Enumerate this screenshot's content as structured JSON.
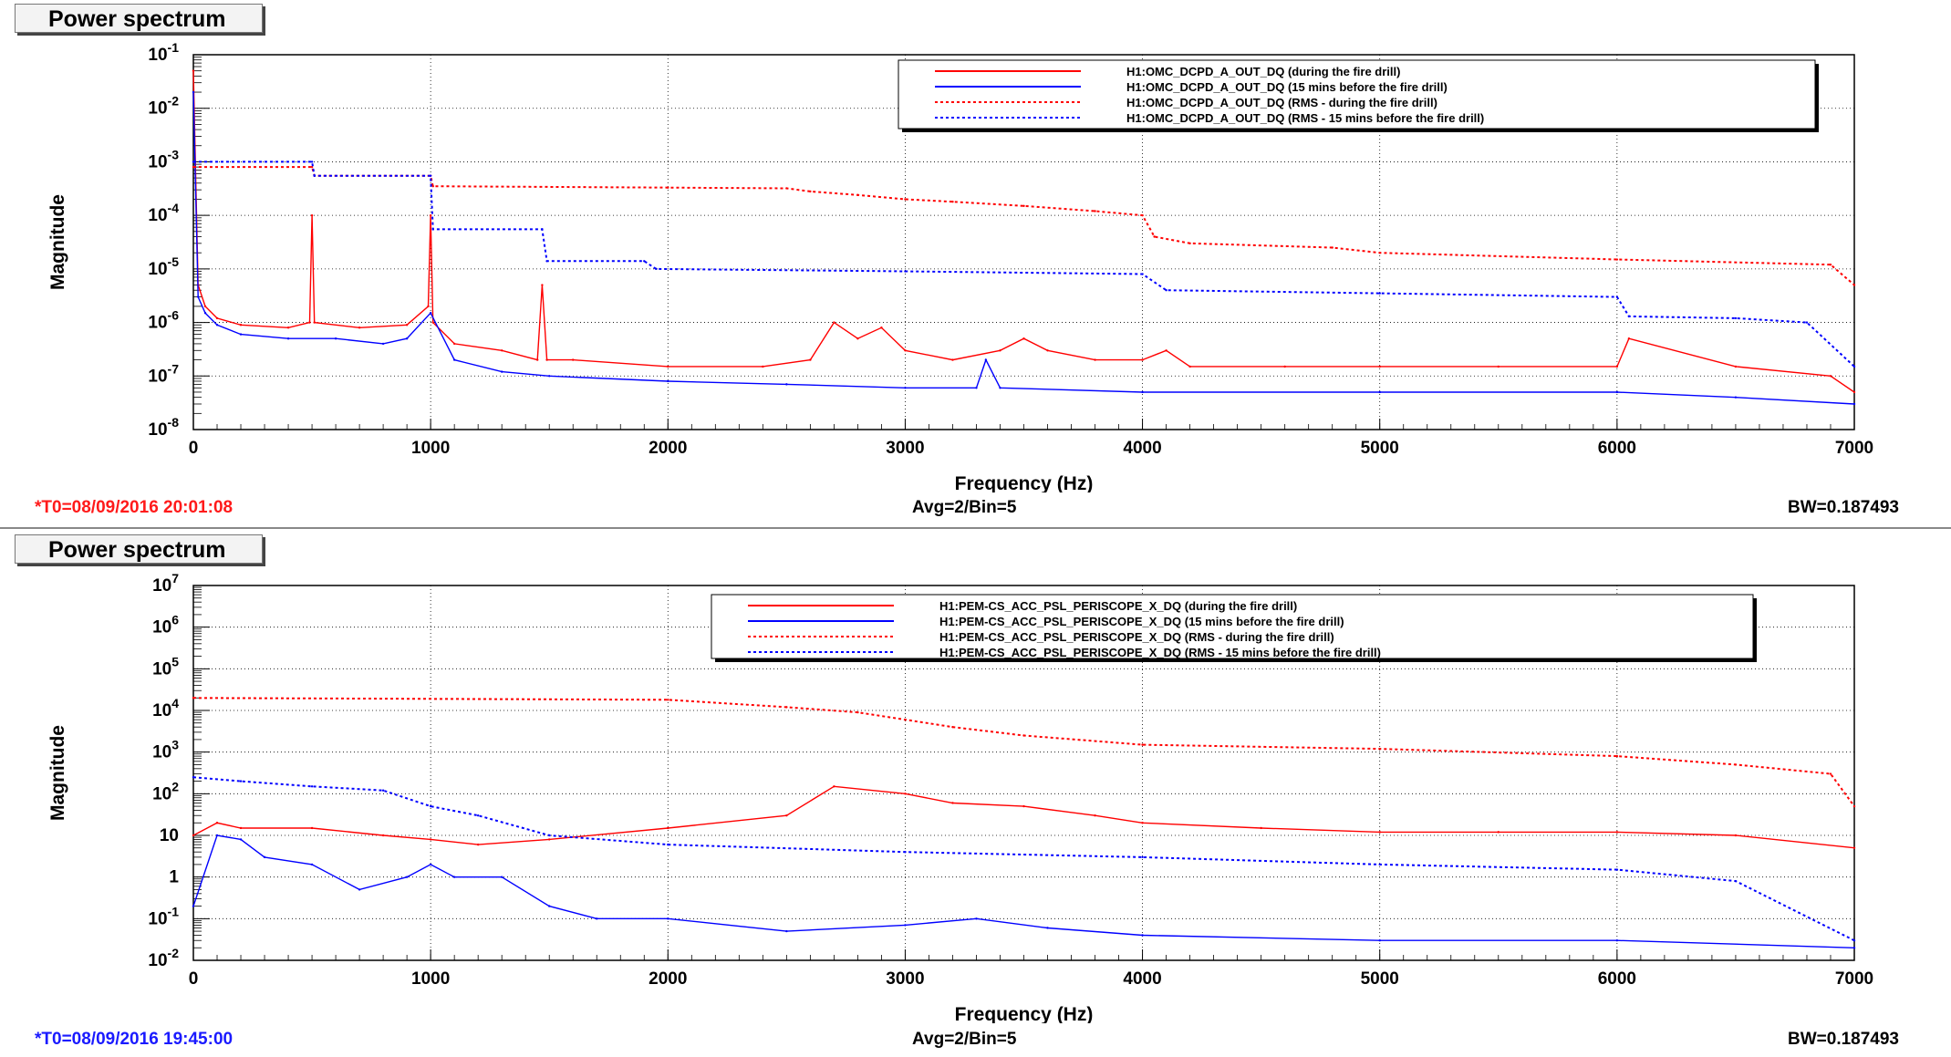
{
  "panels": [
    {
      "title": "Power spectrum",
      "t0": "*T0=08/09/2016 20:01:08",
      "avg": "Avg=2/Bin=5",
      "bw": "BW=0.187493"
    },
    {
      "title": "Power spectrum",
      "t0": "*T0=08/09/2016 19:45:00",
      "avg": "Avg=2/Bin=5",
      "bw": "BW=0.187493"
    }
  ],
  "colors": {
    "red": "#ff0000",
    "blue": "#0000ff"
  },
  "chart_data": [
    {
      "type": "line",
      "xlabel": "Frequency (Hz)",
      "ylabel": "Magnitude",
      "xlim": [
        0,
        7000
      ],
      "ylim": [
        1e-08,
        0.1
      ],
      "yscale": "log",
      "xticks": [
        "0",
        "1000",
        "2000",
        "3000",
        "4000",
        "5000",
        "6000",
        "7000"
      ],
      "ytick_labels": [
        {
          "base": "10",
          "exp": "-8"
        },
        {
          "base": "10",
          "exp": "-7"
        },
        {
          "base": "10",
          "exp": "-6"
        },
        {
          "base": "10",
          "exp": "-5"
        },
        {
          "base": "10",
          "exp": "-4"
        },
        {
          "base": "10",
          "exp": "-3"
        },
        {
          "base": "10",
          "exp": "-2"
        },
        {
          "base": "10",
          "exp": "-1"
        }
      ],
      "legend_position": "top-right",
      "series": [
        {
          "name": "H1:OMC_DCPD_A_OUT_DQ (during the fire drill)",
          "color": "#ff0000",
          "style": "solid",
          "x": [
            0,
            20,
            50,
            100,
            200,
            400,
            490,
            500,
            510,
            700,
            900,
            990,
            1000,
            1010,
            1100,
            1300,
            1450,
            1470,
            1490,
            1600,
            2000,
            2400,
            2600,
            2700,
            2800,
            2900,
            3000,
            3200,
            3400,
            3500,
            3600,
            3800,
            4000,
            4100,
            4200,
            4600,
            5000,
            5500,
            6000,
            6050,
            6500,
            6900,
            7000
          ],
          "y": [
            0.05,
            5e-06,
            2e-06,
            1.2e-06,
            9e-07,
            8e-07,
            1e-06,
            0.0001,
            1e-06,
            8e-07,
            9e-07,
            2e-06,
            0.0001,
            1e-06,
            4e-07,
            3e-07,
            2e-07,
            5e-06,
            2e-07,
            2e-07,
            1.5e-07,
            1.5e-07,
            2e-07,
            1e-06,
            5e-07,
            8e-07,
            3e-07,
            2e-07,
            3e-07,
            5e-07,
            3e-07,
            2e-07,
            2e-07,
            3e-07,
            1.5e-07,
            1.5e-07,
            1.5e-07,
            1.5e-07,
            1.5e-07,
            5e-07,
            1.5e-07,
            1e-07,
            5e-08
          ]
        },
        {
          "name": "H1:OMC_DCPD_A_OUT_DQ (15 mins before the fire drill)",
          "color": "#0000ff",
          "style": "solid",
          "x": [
            0,
            20,
            50,
            100,
            200,
            400,
            600,
            800,
            900,
            1000,
            1100,
            1300,
            1500,
            2000,
            2500,
            3000,
            3300,
            3340,
            3400,
            4000,
            5000,
            6000,
            6500,
            7000
          ],
          "y": [
            0.02,
            3e-06,
            1.5e-06,
            9e-07,
            6e-07,
            5e-07,
            5e-07,
            4e-07,
            5e-07,
            1.5e-06,
            2e-07,
            1.2e-07,
            1e-07,
            8e-08,
            7e-08,
            6e-08,
            6e-08,
            2e-07,
            6e-08,
            5e-08,
            5e-08,
            5e-08,
            4e-08,
            3e-08
          ]
        },
        {
          "name": "H1:OMC_DCPD_A_OUT_DQ (RMS - during the fire drill)",
          "color": "#ff0000",
          "style": "dotted",
          "x": [
            0,
            500,
            510,
            1000,
            1010,
            2000,
            2500,
            2600,
            2800,
            3000,
            3200,
            3500,
            3800,
            4000,
            4050,
            4200,
            4800,
            5000,
            6000,
            6900,
            7000
          ],
          "y": [
            0.0008,
            0.0008,
            0.00055,
            0.00055,
            0.00035,
            0.00033,
            0.00032,
            0.00028,
            0.00024,
            0.0002,
            0.00018,
            0.00015,
            0.00012,
            0.0001,
            4e-05,
            3e-05,
            2.5e-05,
            2e-05,
            1.5e-05,
            1.2e-05,
            5e-06
          ]
        },
        {
          "name": "H1:OMC_DCPD_A_OUT_DQ (RMS - 15 mins before the fire drill)",
          "color": "#0000ff",
          "style": "dotted",
          "x": [
            0,
            500,
            510,
            1000,
            1010,
            1470,
            1490,
            1900,
            1950,
            3000,
            4000,
            4100,
            5000,
            6000,
            6050,
            6500,
            6800,
            7000
          ],
          "y": [
            0.001,
            0.001,
            0.00055,
            0.00055,
            5.5e-05,
            5.5e-05,
            1.4e-05,
            1.4e-05,
            1e-05,
            9e-06,
            8e-06,
            4e-06,
            3.5e-06,
            3e-06,
            1.3e-06,
            1.2e-06,
            1e-06,
            1.5e-07
          ]
        }
      ]
    },
    {
      "type": "line",
      "xlabel": "Frequency (Hz)",
      "ylabel": "Magnitude",
      "xlim": [
        0,
        7000
      ],
      "ylim": [
        0.01,
        10000000.0
      ],
      "yscale": "log",
      "xticks": [
        "0",
        "1000",
        "2000",
        "3000",
        "4000",
        "5000",
        "6000",
        "7000"
      ],
      "ytick_labels": [
        {
          "base": "10",
          "exp": "-2"
        },
        {
          "base": "10",
          "exp": "-1"
        },
        {
          "base": "1",
          "exp": ""
        },
        {
          "base": "10",
          "exp": ""
        },
        {
          "base": "10",
          "exp": "2"
        },
        {
          "base": "10",
          "exp": "3"
        },
        {
          "base": "10",
          "exp": "4"
        },
        {
          "base": "10",
          "exp": "5"
        },
        {
          "base": "10",
          "exp": "6"
        },
        {
          "base": "10",
          "exp": "7"
        }
      ],
      "legend_position": "top-right",
      "series": [
        {
          "name": "H1:PEM-CS_ACC_PSL_PERISCOPE_X_DQ (during the fire drill)",
          "color": "#ff0000",
          "style": "solid",
          "x": [
            0,
            100,
            200,
            500,
            800,
            1000,
            1200,
            1500,
            2000,
            2500,
            2700,
            3000,
            3200,
            3500,
            3800,
            4000,
            4500,
            5000,
            5500,
            6000,
            6500,
            7000
          ],
          "y": [
            10,
            20,
            15,
            15,
            10,
            8,
            6,
            8,
            15,
            30,
            150,
            100,
            60,
            50,
            30,
            20,
            15,
            12,
            12,
            12,
            10,
            5
          ]
        },
        {
          "name": "H1:PEM-CS_ACC_PSL_PERISCOPE_X_DQ (15 mins before the fire drill)",
          "color": "#0000ff",
          "style": "solid",
          "x": [
            0,
            100,
            200,
            300,
            500,
            700,
            900,
            1000,
            1100,
            1300,
            1500,
            1700,
            2000,
            2500,
            3000,
            3300,
            3600,
            4000,
            5000,
            6000,
            7000
          ],
          "y": [
            0.2,
            10,
            8,
            3,
            2,
            0.5,
            1,
            2,
            1,
            1,
            0.2,
            0.1,
            0.1,
            0.05,
            0.07,
            0.1,
            0.06,
            0.04,
            0.03,
            0.03,
            0.02
          ]
        },
        {
          "name": "H1:PEM-CS_ACC_PSL_PERISCOPE_X_DQ (RMS - during the fire drill)",
          "color": "#ff0000",
          "style": "dotted",
          "x": [
            0,
            2000,
            2500,
            2800,
            3000,
            3200,
            3500,
            4000,
            5000,
            6000,
            6500,
            6900,
            7000
          ],
          "y": [
            20000,
            18000,
            12000,
            9000,
            6000,
            4000,
            2500,
            1500,
            1200,
            800,
            500,
            300,
            50
          ]
        },
        {
          "name": "H1:PEM-CS_ACC_PSL_PERISCOPE_X_DQ (RMS - 15 mins before the fire drill)",
          "color": "#0000ff",
          "style": "dotted",
          "x": [
            0,
            200,
            500,
            800,
            1000,
            1200,
            1500,
            2000,
            3000,
            4000,
            5000,
            6000,
            6500,
            7000
          ],
          "y": [
            250,
            200,
            150,
            120,
            50,
            30,
            10,
            6,
            4,
            3,
            2,
            1.5,
            0.8,
            0.03
          ]
        }
      ]
    }
  ]
}
